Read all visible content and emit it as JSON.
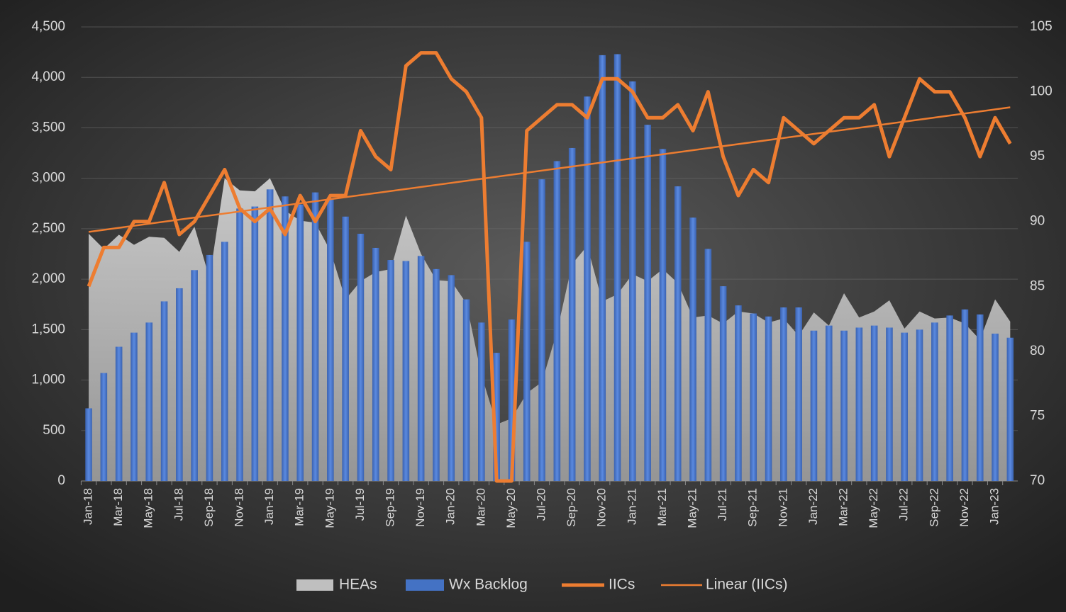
{
  "chart_data": {
    "type": "combo",
    "categories": [
      "Jan-18",
      null,
      "Mar-18",
      null,
      "May-18",
      null,
      "Jul-18",
      null,
      "Sep-18",
      null,
      "Nov-18",
      null,
      "Jan-19",
      null,
      "Mar-19",
      null,
      "May-19",
      null,
      "Jul-19",
      null,
      "Sep-19",
      null,
      "Nov-19",
      null,
      "Jan-20",
      null,
      "Mar-20",
      null,
      "May-20",
      null,
      "Jul-20",
      null,
      "Sep-20",
      null,
      "Nov-20",
      null,
      "Jan-21",
      null,
      "Mar-21",
      null,
      "May-21",
      null,
      "Jul-21",
      null,
      "Sep-21",
      null,
      "Nov-21",
      null,
      "Jan-22",
      null,
      "Mar-22",
      null,
      "May-22",
      null,
      "Jul-22",
      null,
      "Sep-22",
      null,
      "Nov-22",
      null,
      "Jan-23",
      null
    ],
    "series": [
      {
        "name": "HEAs",
        "type": "area",
        "color": "#bfbfbf",
        "axis": "y",
        "values": [
          2450,
          2300,
          2440,
          2340,
          2420,
          2410,
          2270,
          2520,
          2010,
          3000,
          2880,
          2870,
          3000,
          2680,
          2580,
          2560,
          2280,
          1800,
          1980,
          2070,
          2100,
          2630,
          2250,
          1990,
          1980,
          1760,
          1050,
          560,
          620,
          870,
          980,
          1480,
          2150,
          2330,
          1780,
          1850,
          2050,
          1980,
          2100,
          1960,
          1620,
          1640,
          1560,
          1680,
          1660,
          1570,
          1610,
          1440,
          1670,
          1540,
          1860,
          1620,
          1680,
          1790,
          1510,
          1680,
          1610,
          1620,
          1560,
          1400,
          1800,
          1580
        ]
      },
      {
        "name": "Wx Backlog",
        "type": "bar",
        "color": "#4472c4",
        "axis": "y",
        "values": [
          720,
          1070,
          1330,
          1470,
          1570,
          1780,
          1910,
          2090,
          2240,
          2370,
          2700,
          2720,
          2890,
          2820,
          2740,
          2860,
          2800,
          2620,
          2450,
          2310,
          2190,
          2180,
          2230,
          2100,
          2040,
          1800,
          1570,
          1270,
          1600,
          2370,
          2990,
          3170,
          3300,
          3810,
          4220,
          4230,
          3960,
          3530,
          3290,
          2920,
          2610,
          2300,
          1930,
          1740,
          1660,
          1630,
          1720,
          1720,
          1490,
          1540,
          1490,
          1520,
          1540,
          1520,
          1470,
          1500,
          1570,
          1640,
          1700,
          1650,
          1460,
          1420
        ]
      },
      {
        "name": "IICs",
        "type": "line",
        "color": "#ed7d31",
        "axis": "y2",
        "values": [
          85,
          88,
          88,
          90,
          90,
          93,
          89,
          90,
          92,
          94,
          91,
          90,
          91,
          89,
          92,
          90,
          92,
          92,
          97,
          95,
          94,
          102,
          103,
          103,
          101,
          100,
          98,
          70,
          70,
          97,
          98,
          99,
          99,
          98,
          101,
          101,
          100,
          98,
          98,
          99,
          97,
          100,
          95,
          92,
          94,
          93,
          98,
          97,
          96,
          97,
          98,
          98,
          99,
          95,
          98,
          101,
          100,
          100,
          98,
          95,
          98,
          96
        ]
      }
    ],
    "trendline": {
      "name": "Linear (IICs)",
      "color": "#ed7d31",
      "start": 89.2,
      "end": 98.8
    },
    "ylim": [
      0,
      4500
    ],
    "yticks": [
      0,
      500,
      {
        "value": 1000,
        "label": "1,000"
      },
      {
        "value": 1500,
        "label": "1,500"
      },
      {
        "value": 2000,
        "label": "2,000"
      },
      {
        "value": 2500,
        "label": "2,500"
      },
      {
        "value": 3000,
        "label": "3,000"
      },
      {
        "value": 3500,
        "label": "3,500"
      },
      {
        "value": 4000,
        "label": "4,000"
      },
      {
        "value": 4500,
        "label": "4,500"
      }
    ],
    "y2lim": [
      70,
      105
    ],
    "y2ticks": [
      70,
      75,
      80,
      85,
      90,
      95,
      100,
      105
    ],
    "grid": true,
    "legend": "bottom"
  }
}
